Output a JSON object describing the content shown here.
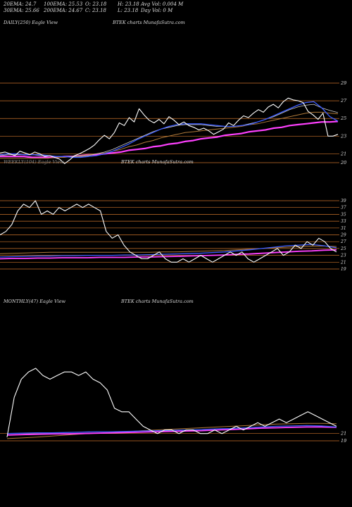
{
  "header": {
    "ema20": "20EMA: 24.7",
    "ema100": "100EMA: 25.53",
    "open": "O: 23.18",
    "high": "H: 23.18",
    "avgvol": "Avg Vol: 0.004 M",
    "ema30": "30EMA: 25.66",
    "ema200": "200EMA: 24.67",
    "close": "C: 23.18",
    "low": "L: 23.18",
    "dayvol": "Day Vol: 0  M"
  },
  "panels": {
    "daily": {
      "label": "DAILY(250) Eagle  View",
      "watermark": "BTEK charts MunafaSutra.com"
    },
    "weekly": {
      "label": "WEEKLY(104) Eagle  View",
      "watermark": "BTEK charts MunafaSutra.com"
    },
    "monthly": {
      "label": "MONTHLY(47) Eagle  View",
      "watermark": "BTEK charts MunafaSutra.com"
    }
  },
  "colors": {
    "price": "#ffffff",
    "ema_blue": "#3b5bff",
    "ema_magenta": "#ff40ff",
    "ema_brown": "#b07a3a",
    "grid": "#c8722a"
  },
  "chart_data": [
    {
      "type": "line",
      "name": "daily",
      "yticks": [
        29,
        27,
        25,
        23,
        21,
        20
      ],
      "price": [
        21.1,
        21.2,
        21.0,
        20.8,
        21.3,
        21.1,
        20.9,
        21.2,
        21.0,
        20.7,
        20.8,
        20.6,
        20.4,
        19.9,
        20.3,
        20.8,
        21.0,
        21.3,
        21.6,
        22.0,
        22.6,
        23.1,
        22.7,
        23.4,
        24.5,
        24.2,
        25.1,
        24.6,
        26.1,
        25.4,
        24.8,
        24.5,
        24.9,
        24.4,
        25.2,
        24.8,
        24.3,
        24.6,
        24.2,
        24.0,
        23.7,
        23.9,
        23.6,
        23.2,
        23.5,
        23.8,
        24.5,
        24.2,
        24.8,
        25.3,
        25.1,
        25.6,
        26.0,
        25.7,
        26.3,
        26.6,
        26.2,
        26.9,
        27.3,
        27.1,
        27.0,
        26.8,
        25.8,
        25.4,
        24.9,
        25.6,
        23.0,
        23.0,
        23.2
      ],
      "ema20": [
        20.9,
        21.0,
        21.0,
        20.9,
        20.9,
        20.9,
        20.8,
        20.7,
        20.7,
        20.6,
        20.6,
        20.7,
        20.8,
        21.0,
        21.3,
        21.7,
        22.1,
        22.6,
        23.0,
        23.4,
        23.8,
        24.1,
        24.3,
        24.4,
        24.4,
        24.4,
        24.3,
        24.2,
        24.1,
        24.1,
        24.2,
        24.3,
        24.6,
        24.9,
        25.3,
        25.7,
        26.1,
        26.5,
        26.8,
        26.9,
        26.2,
        25.2,
        24.7
      ],
      "ema30": [
        20.8,
        20.9,
        20.9,
        20.9,
        20.9,
        20.8,
        20.8,
        20.7,
        20.7,
        20.7,
        20.7,
        20.8,
        21.0,
        21.2,
        21.5,
        21.9,
        22.3,
        22.7,
        23.1,
        23.5,
        23.8,
        24.0,
        24.2,
        24.3,
        24.3,
        24.3,
        24.2,
        24.1,
        24.1,
        24.1,
        24.2,
        24.4,
        24.6,
        24.9,
        25.2,
        25.6,
        26.0,
        26.3,
        26.5,
        26.6,
        26.2,
        25.9,
        25.66
      ],
      "ema100": [
        20.5,
        20.5,
        20.5,
        20.5,
        20.5,
        20.5,
        20.5,
        20.6,
        20.6,
        20.7,
        20.8,
        20.9,
        21.0,
        21.1,
        21.3,
        21.5,
        21.8,
        22.0,
        22.3,
        22.5,
        22.8,
        23.0,
        23.2,
        23.4,
        23.5,
        23.6,
        23.7,
        23.8,
        23.9,
        24.0,
        24.1,
        24.3,
        24.4,
        24.6,
        24.8,
        25.0,
        25.2,
        25.4,
        25.6,
        25.7,
        25.7,
        25.6,
        25.53
      ],
      "ema200": [
        20.7,
        20.7,
        20.7,
        20.7,
        20.6,
        20.6,
        20.6,
        20.6,
        20.7,
        20.7,
        20.8,
        20.9,
        20.9,
        21.0,
        21.1,
        21.2,
        21.4,
        21.5,
        21.6,
        21.8,
        21.9,
        22.1,
        22.2,
        22.4,
        22.5,
        22.7,
        22.8,
        22.9,
        23.1,
        23.2,
        23.3,
        23.5,
        23.6,
        23.7,
        23.9,
        24.0,
        24.2,
        24.3,
        24.4,
        24.5,
        24.6,
        24.6,
        24.67
      ]
    },
    {
      "type": "line",
      "name": "weekly",
      "yticks": [
        39,
        37,
        35,
        33,
        31,
        29,
        27,
        25,
        23,
        21,
        19
      ],
      "price": [
        29,
        30,
        32,
        36,
        38,
        37,
        39,
        35,
        36,
        35,
        37,
        36,
        37,
        38,
        37,
        38,
        37,
        36,
        30,
        28,
        29,
        26,
        24,
        23,
        22,
        22,
        23,
        24,
        22,
        21,
        21,
        22,
        21,
        22,
        23,
        22,
        21,
        22,
        23,
        24,
        23,
        24,
        22,
        21,
        22,
        23,
        24,
        25,
        23,
        24,
        26,
        25,
        27,
        26,
        28,
        27,
        25,
        24
      ],
      "ema_blue": [
        22.5,
        22.6,
        22.7,
        22.8,
        22.8,
        22.9,
        22.9,
        23.0,
        23.0,
        23.0,
        23.1,
        23.1,
        23.2,
        23.3,
        23.4,
        23.5,
        23.6,
        23.8,
        24.0,
        24.3,
        24.6,
        25.0,
        25.4,
        25.8,
        26.0,
        26.2,
        25.8,
        25.2
      ],
      "ema_magenta": [
        22.0,
        22.1,
        22.1,
        22.2,
        22.2,
        22.3,
        22.3,
        22.3,
        22.4,
        22.4,
        22.4,
        22.5,
        22.5,
        22.6,
        22.7,
        22.8,
        22.9,
        23.0,
        23.1,
        23.3,
        23.4,
        23.6,
        23.8,
        24.0,
        24.2,
        24.3,
        24.5,
        24.6
      ],
      "ema_brown": [
        23.5,
        23.6,
        23.7,
        23.8,
        23.9,
        23.9,
        23.9,
        23.9,
        23.9,
        23.9,
        23.9,
        23.9,
        23.9,
        24.0,
        24.0,
        24.1,
        24.2,
        24.3,
        24.4,
        24.6,
        24.8,
        25.0,
        25.2,
        25.4,
        25.6,
        25.7,
        25.7,
        25.6
      ]
    },
    {
      "type": "line",
      "name": "monthly",
      "yticks": [
        21,
        19
      ],
      "price": [
        20,
        31,
        36,
        38,
        39,
        37,
        36,
        37,
        38,
        38,
        37,
        38,
        36,
        35,
        33,
        28,
        27,
        27,
        25,
        23,
        22,
        21,
        22,
        22,
        21,
        22,
        22,
        21,
        21,
        22,
        21,
        22,
        23,
        22,
        23,
        24,
        23,
        24,
        25,
        24,
        25,
        26,
        27,
        26,
        25,
        24,
        23
      ],
      "ema_blue": [
        21.0,
        21.1,
        21.2,
        21.2,
        21.3,
        21.4,
        21.5,
        21.5,
        21.6,
        21.7,
        21.8,
        21.9,
        22.0,
        22.1,
        22.3,
        22.4,
        22.6,
        22.8,
        23.0,
        23.1,
        23.2,
        23.1,
        22.8
      ],
      "ema_magenta": [
        20.6,
        20.7,
        20.8,
        20.9,
        20.9,
        21.0,
        21.1,
        21.2,
        21.3,
        21.4,
        21.5,
        21.6,
        21.7,
        21.8,
        22.0,
        22.1,
        22.3,
        22.5,
        22.6,
        22.7,
        22.8,
        22.8,
        22.7
      ],
      "ema_brown": [
        19.6,
        19.8,
        20.0,
        20.3,
        20.6,
        20.9,
        21.1,
        21.3,
        21.5,
        21.8,
        22.0,
        22.2,
        22.4,
        22.6,
        22.8,
        23.0,
        23.2,
        23.4,
        23.6,
        23.7,
        23.8,
        23.8,
        23.7
      ]
    }
  ]
}
